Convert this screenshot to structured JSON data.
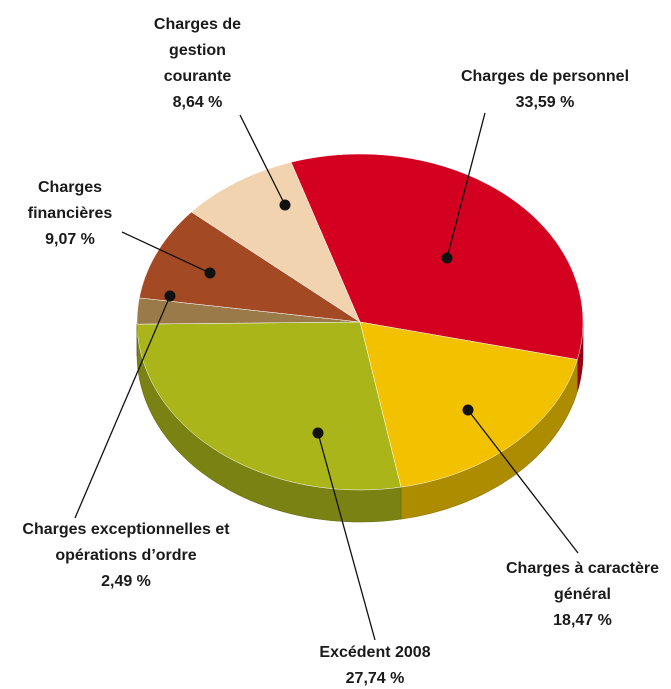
{
  "chart_data": {
    "type": "pie",
    "categories": [
      "Charges de personnel",
      "Charges à caractère général",
      "Excédent 2008",
      "Charges exceptionnelles et opérations d’ordre",
      "Charges financières",
      "Charges de gestion courante"
    ],
    "values": [
      33.59,
      18.47,
      27.74,
      2.49,
      9.07,
      8.64
    ],
    "value_labels": [
      "33,59 %",
      "18,47 %",
      "27,74 %",
      "2,49 %",
      "9,07 %",
      "8,64 %"
    ],
    "colors": [
      "#d4001f",
      "#f2c200",
      "#aab51a",
      "#9b7a4a",
      "#a34a24",
      "#f2d3b0"
    ]
  }
}
